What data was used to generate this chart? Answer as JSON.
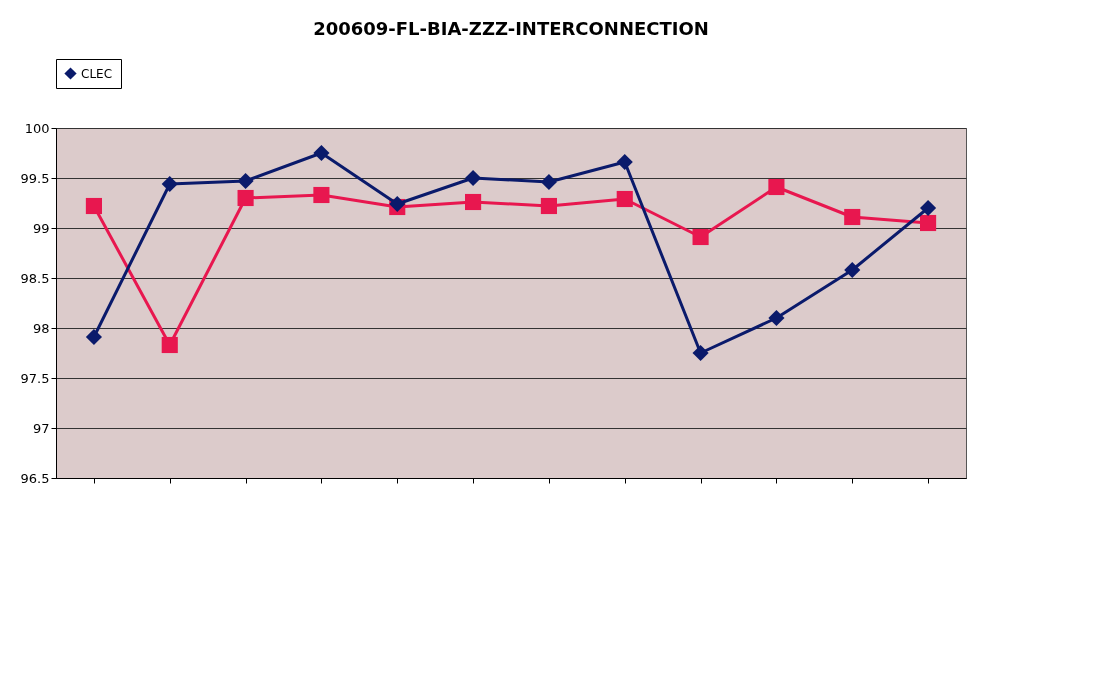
{
  "chart_data": {
    "type": "line",
    "title": "200609-FL-BIA-ZZZ-INTERCONNECTION",
    "categories": [
      null,
      null,
      null,
      null,
      null,
      null,
      null,
      null,
      null,
      null,
      null,
      null
    ],
    "series": [
      {
        "name": "CLEC",
        "color": "#0a1a6b",
        "marker": "diamond",
        "values": [
          97.91,
          99.44,
          99.47,
          99.75,
          99.24,
          99.5,
          99.46,
          99.66,
          97.75,
          98.1,
          98.58,
          99.2
        ]
      },
      {
        "color": "#e8174f",
        "marker": "square",
        "values": [
          99.22,
          97.83,
          99.3,
          99.33,
          99.21,
          99.26,
          99.22,
          99.29,
          98.91,
          99.41,
          99.11,
          99.05
        ]
      }
    ],
    "ylim": [
      96.5,
      100
    ],
    "yticks": [
      96.5,
      97,
      97.5,
      98,
      98.5,
      99,
      99.5,
      100
    ],
    "grid": "y",
    "legend": "top",
    "line_style": "solid"
  }
}
